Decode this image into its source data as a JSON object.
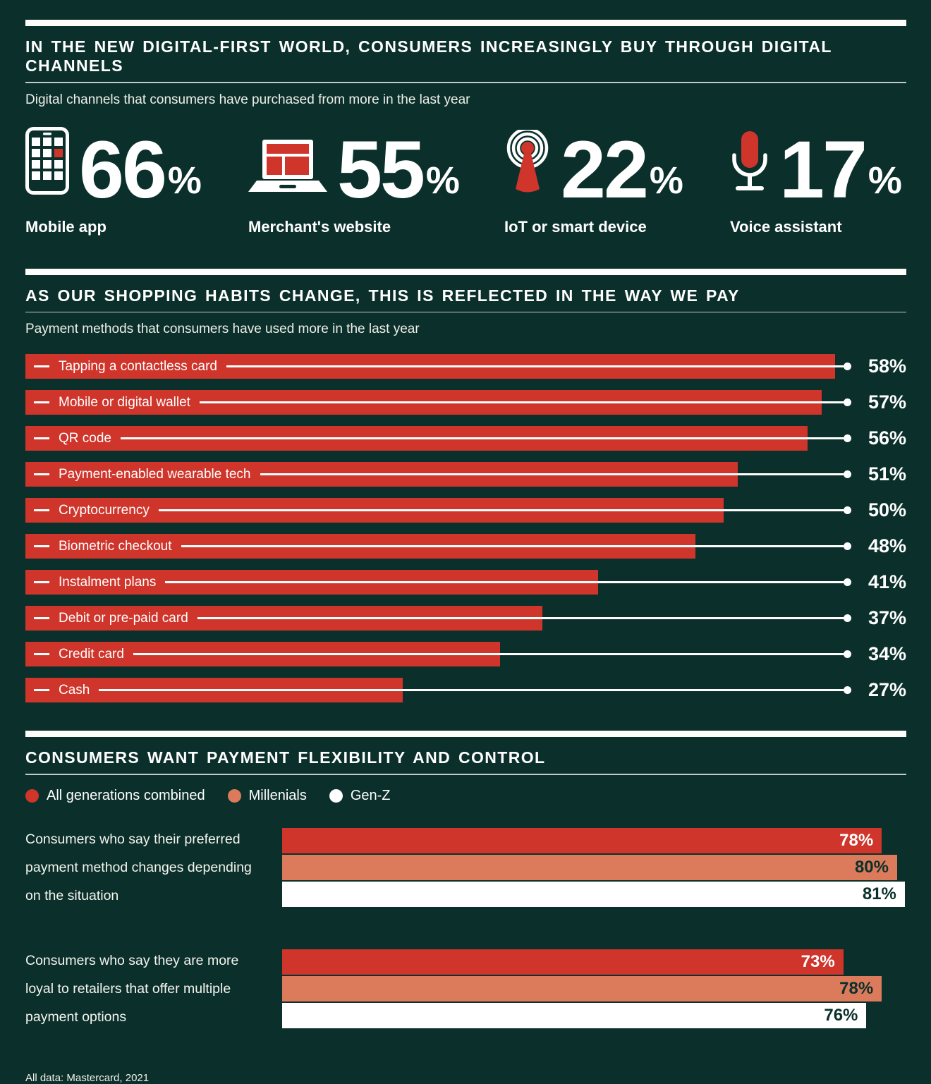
{
  "theme": {
    "bg": "#0B302B",
    "red": "#CF352B",
    "salmon": "#DC7B5B",
    "white": "#FFFFFF"
  },
  "section1": {
    "title": "IN THE NEW DIGITAL-FIRST WORLD, CONSUMERS INCREASINGLY BUY THROUGH DIGITAL CHANNELS",
    "subtitle": "Digital channels that consumers have purchased from more in the last year",
    "stats": [
      {
        "icon": "mobile-phone-icon",
        "value": "66",
        "unit": "%",
        "label": "Mobile app"
      },
      {
        "icon": "laptop-icon",
        "value": "55",
        "unit": "%",
        "label": "Merchant's website"
      },
      {
        "icon": "antenna-icon",
        "value": "22",
        "unit": "%",
        "label": "IoT or smart device"
      },
      {
        "icon": "microphone-icon",
        "value": "17",
        "unit": "%",
        "label": "Voice assistant"
      }
    ]
  },
  "section2": {
    "title": "AS OUR SHOPPING HABITS CHANGE, THIS IS REFLECTED IN THE WAY WE PAY",
    "subtitle": "Payment methods that consumers have used more in the last year",
    "rows": [
      {
        "label": "Tapping a contactless card",
        "value": 58,
        "pct": "58%"
      },
      {
        "label": "Mobile or digital wallet",
        "value": 57,
        "pct": "57%"
      },
      {
        "label": "QR code",
        "value": 56,
        "pct": "56%"
      },
      {
        "label": "Payment-enabled wearable tech",
        "value": 51,
        "pct": "51%"
      },
      {
        "label": "Cryptocurrency",
        "value": 50,
        "pct": "50%"
      },
      {
        "label": "Biometric checkout",
        "value": 48,
        "pct": "48%"
      },
      {
        "label": "Instalment plans",
        "value": 41,
        "pct": "41%"
      },
      {
        "label": "Debit or pre-paid card",
        "value": 37,
        "pct": "37%"
      },
      {
        "label": "Credit card",
        "value": 34,
        "pct": "34%"
      },
      {
        "label": "Cash",
        "value": 27,
        "pct": "27%"
      }
    ]
  },
  "section3": {
    "title": "CONSUMERS WANT PAYMENT FLEXIBILITY AND CONTROL",
    "legend": [
      {
        "label": "All generations combined",
        "color": "#CF352B"
      },
      {
        "label": "Millenials",
        "color": "#DC7B5B"
      },
      {
        "label": "Gen-Z",
        "color": "#FFFFFF"
      }
    ],
    "groups": [
      {
        "label": "Consumers who say their preferred payment method changes depending on the situation",
        "bars": [
          {
            "series": "All generations combined",
            "value": 78,
            "pct": "78%"
          },
          {
            "series": "Millenials",
            "value": 80,
            "pct": "80%"
          },
          {
            "series": "Gen-Z",
            "value": 81,
            "pct": "81%"
          }
        ]
      },
      {
        "label": "Consumers who say they are more loyal to retailers that offer multiple payment options",
        "bars": [
          {
            "series": "All generations combined",
            "value": 73,
            "pct": "73%"
          },
          {
            "series": "Millenials",
            "value": 78,
            "pct": "78%"
          },
          {
            "series": "Gen-Z",
            "value": 76,
            "pct": "76%"
          }
        ]
      }
    ]
  },
  "footer": "All data: Mastercard, 2021",
  "chart_data": [
    {
      "type": "bar",
      "title": "Digital channels that consumers have purchased from more in the last year",
      "categories": [
        "Mobile app",
        "Merchant's website",
        "IoT or smart device",
        "Voice assistant"
      ],
      "values": [
        66,
        55,
        22,
        17
      ],
      "unit": "%"
    },
    {
      "type": "bar",
      "orientation": "horizontal",
      "title": "Payment methods that consumers have used more in the last year",
      "categories": [
        "Tapping a contactless card",
        "Mobile or digital wallet",
        "QR code",
        "Payment-enabled wearable tech",
        "Cryptocurrency",
        "Biometric checkout",
        "Instalment plans",
        "Debit or pre-paid card",
        "Credit card",
        "Cash"
      ],
      "values": [
        58,
        57,
        56,
        51,
        50,
        48,
        41,
        37,
        34,
        27
      ],
      "unit": "%",
      "xlim": [
        0,
        59
      ],
      "grid": false,
      "bar_color": "#CF352B"
    },
    {
      "type": "bar",
      "orientation": "horizontal",
      "title": "Consumers want payment flexibility and control",
      "categories": [
        "Consumers who say their preferred payment method changes depending on the situation",
        "Consumers who say they are more loyal to retailers that offer multiple payment options"
      ],
      "series": [
        {
          "name": "All generations combined",
          "values": [
            78,
            73
          ],
          "color": "#CF352B"
        },
        {
          "name": "Millenials",
          "values": [
            80,
            78
          ],
          "color": "#DC7B5B"
        },
        {
          "name": "Gen-Z",
          "values": [
            81,
            76
          ],
          "color": "#FFFFFF"
        }
      ],
      "unit": "%",
      "legend_position": "top"
    }
  ]
}
